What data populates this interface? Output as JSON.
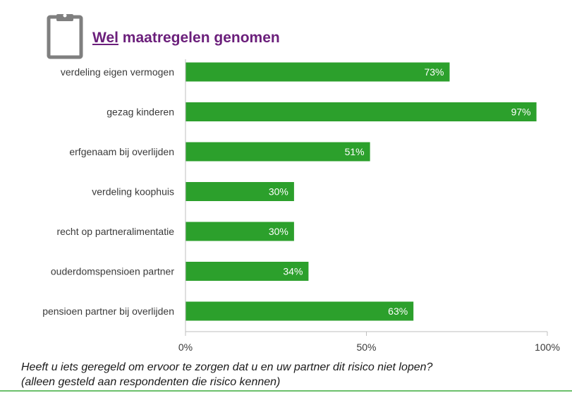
{
  "title": {
    "strong": "Wel",
    "rest": " maatregelen genomen"
  },
  "question_line1": "Heeft u iets geregeld om ervoor te zorgen dat u en uw partner dit risico niet lopen?",
  "question_line2": "(alleen gesteld aan respondenten die risico kennen)",
  "colors": {
    "bar": "#2ca02c",
    "title": "#6b1f7b",
    "rule": "#6cc06c",
    "icon": "#7f7f7f"
  },
  "icon": "clipboard-icon",
  "chart_data": {
    "type": "bar",
    "orientation": "horizontal",
    "categories": [
      "verdeling eigen vermogen",
      "gezag kinderen",
      "erfgenaam bij overlijden",
      "verdeling koophuis",
      "recht op partneralimentatie",
      "ouderdomspensioen partner",
      "pensioen partner bij overlijden"
    ],
    "values": [
      73,
      97,
      51,
      30,
      30,
      34,
      63
    ],
    "data_labels": [
      "73%",
      "97%",
      "51%",
      "30%",
      "30%",
      "34%",
      "63%"
    ],
    "xlim": [
      0,
      100
    ],
    "x_ticks": [
      0,
      50,
      100
    ],
    "x_tick_labels": [
      "0%",
      "50%",
      "100%"
    ],
    "grid": false,
    "legend": "none"
  }
}
